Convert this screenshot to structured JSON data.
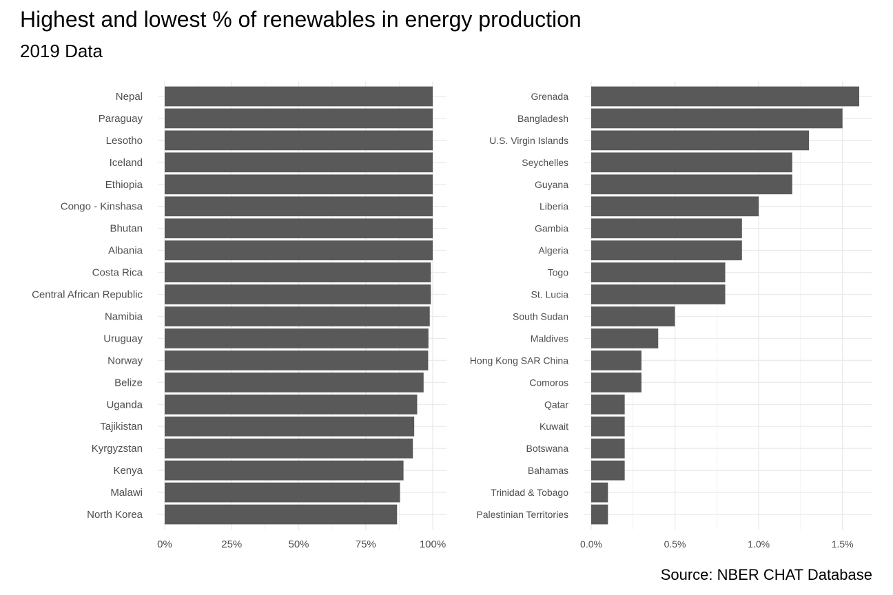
{
  "title": "Highest and lowest % of renewables in energy production",
  "subtitle": "2019 Data",
  "caption": "Source: NBER CHAT Database",
  "colors": {
    "bar": "#595959",
    "grid": "#ebebeb",
    "text": "#4d4d4d"
  },
  "chart_data": [
    {
      "type": "bar",
      "orientation": "horizontal",
      "title": "",
      "xlabel": "",
      "ylabel": "",
      "xlim": [
        0,
        100
      ],
      "ticks": [
        0,
        25,
        50,
        75,
        100
      ],
      "tick_labels": [
        "0%",
        "25%",
        "50%",
        "75%",
        "100%"
      ],
      "grid": true,
      "categories": [
        "Nepal",
        "Paraguay",
        "Lesotho",
        "Iceland",
        "Ethiopia",
        "Congo - Kinshasa",
        "Bhutan",
        "Albania",
        "Costa Rica",
        "Central African Republic",
        "Namibia",
        "Uruguay",
        "Norway",
        "Belize",
        "Uganda",
        "Tajikistan",
        "Kyrgyzstan",
        "Kenya",
        "Malawi",
        "North Korea"
      ],
      "values": [
        100,
        100,
        100,
        100,
        100,
        100,
        100,
        100,
        99.3,
        99.3,
        98.9,
        98.4,
        98.3,
        96.6,
        94.2,
        93.1,
        92.6,
        89.1,
        87.8,
        86.7
      ]
    },
    {
      "type": "bar",
      "orientation": "horizontal",
      "title": "",
      "xlabel": "",
      "ylabel": "",
      "xlim": [
        0,
        1.6
      ],
      "ticks": [
        0,
        0.5,
        1.0,
        1.5
      ],
      "tick_labels": [
        "0.0%",
        "0.5%",
        "1.0%",
        "1.5%"
      ],
      "grid": true,
      "categories": [
        "Grenada",
        "Bangladesh",
        "U.S. Virgin Islands",
        "Seychelles",
        "Guyana",
        "Liberia",
        "Gambia",
        "Algeria",
        "Togo",
        "St. Lucia",
        "South Sudan",
        "Maldives",
        "Hong Kong SAR China",
        "Comoros",
        "Qatar",
        "Kuwait",
        "Botswana",
        "Bahamas",
        "Trinidad & Tobago",
        "Palestinian Territories"
      ],
      "values": [
        1.6,
        1.5,
        1.3,
        1.2,
        1.2,
        1.0,
        0.9,
        0.9,
        0.8,
        0.8,
        0.5,
        0.4,
        0.3,
        0.3,
        0.2,
        0.2,
        0.2,
        0.2,
        0.1,
        0.1
      ]
    }
  ]
}
